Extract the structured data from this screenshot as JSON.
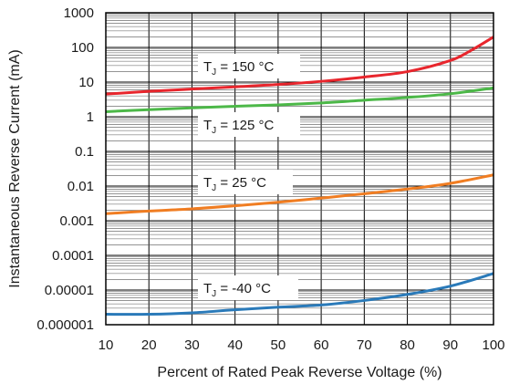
{
  "chart_data": {
    "type": "line",
    "xlabel": "Percent of Rated Peak Reverse Voltage (%)",
    "ylabel": "Instantaneous Reverse Current (mA)",
    "x_scale": "linear",
    "y_scale": "log",
    "xlim": [
      10,
      100
    ],
    "ylim": [
      1e-06,
      1000
    ],
    "x_ticks": [
      10,
      20,
      30,
      40,
      50,
      60,
      70,
      80,
      90,
      100
    ],
    "x_tick_labels": [
      "10",
      "20",
      "30",
      "40",
      "50",
      "60",
      "70",
      "80",
      "90",
      "100"
    ],
    "y_ticks": [
      1e-06,
      1e-05,
      0.0001,
      0.001,
      0.01,
      0.1,
      1,
      10,
      100,
      1000
    ],
    "y_tick_labels": [
      "0.000001",
      "0.00001",
      "0.0001",
      "0.001",
      "0.01",
      "0.1",
      "1",
      "10",
      "100",
      "1000"
    ],
    "grid": true,
    "series": [
      {
        "name": "150 °C",
        "color": "#e8262d",
        "x": [
          10,
          20,
          30,
          40,
          50,
          60,
          70,
          80,
          90,
          95,
          100
        ],
        "y": [
          4.5,
          5.4,
          6.3,
          7.3,
          8.5,
          10.5,
          14,
          20,
          42,
          85,
          200
        ]
      },
      {
        "name": "125 °C",
        "color": "#4cb848",
        "x": [
          10,
          20,
          30,
          40,
          50,
          60,
          70,
          80,
          90,
          100
        ],
        "y": [
          1.4,
          1.6,
          1.8,
          2.0,
          2.2,
          2.5,
          3.0,
          3.6,
          4.6,
          6.8
        ]
      },
      {
        "name": "25 °C",
        "color": "#f07d22",
        "x": [
          10,
          20,
          30,
          40,
          50,
          60,
          70,
          80,
          90,
          100
        ],
        "y": [
          0.0016,
          0.0019,
          0.0022,
          0.0027,
          0.0034,
          0.0045,
          0.006,
          0.0082,
          0.012,
          0.021
        ]
      },
      {
        "name": "-40 °C",
        "color": "#2a7ab9",
        "x": [
          10,
          20,
          30,
          40,
          50,
          60,
          70,
          80,
          90,
          100
        ],
        "y": [
          2e-06,
          2e-06,
          2.2e-06,
          2.7e-06,
          3.2e-06,
          3.7e-06,
          5e-06,
          7.5e-06,
          1.3e-05,
          3e-05
        ]
      }
    ],
    "annotations": [
      {
        "prefix": "T",
        "subscript": "J",
        "text": " = 150 °C",
        "series": 0
      },
      {
        "prefix": "T",
        "subscript": "J",
        "text": " = 125 °C",
        "series": 1
      },
      {
        "prefix": "T",
        "subscript": "J",
        "text": " = 25 °C",
        "series": 2
      },
      {
        "prefix": "T",
        "subscript": "J",
        "text": " = -40 °C",
        "series": 3
      }
    ]
  }
}
